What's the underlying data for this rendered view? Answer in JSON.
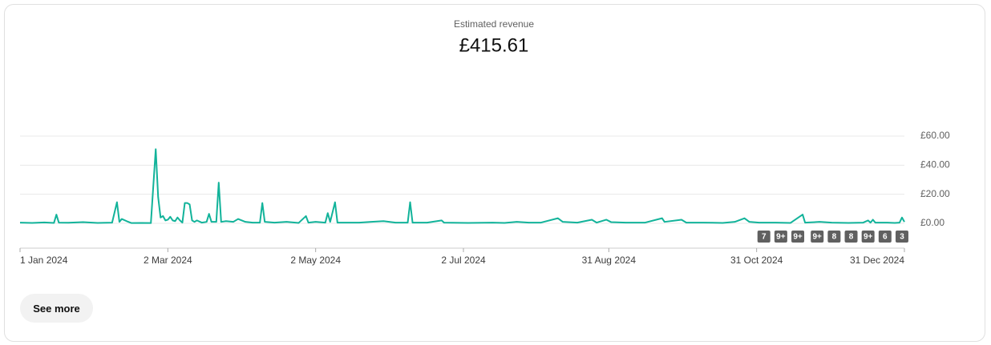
{
  "header": {
    "title": "Estimated revenue",
    "total": "£415.61"
  },
  "chart_data": {
    "type": "line",
    "x": [
      0,
      5,
      10,
      14,
      15,
      16,
      20,
      26,
      32,
      38,
      40,
      41,
      42,
      44,
      46,
      50,
      54,
      56,
      57,
      58,
      59,
      60,
      61,
      62,
      63,
      64,
      65,
      66,
      67,
      68,
      69,
      70,
      71,
      72,
      73,
      75,
      77,
      78,
      79,
      81,
      82,
      83,
      85,
      88,
      90,
      93,
      96,
      99,
      100,
      101,
      105,
      110,
      115,
      118,
      119,
      122,
      126,
      127,
      128,
      130,
      131,
      135,
      140,
      145,
      150,
      155,
      160,
      161,
      162,
      168,
      174,
      175,
      185,
      195,
      200,
      205,
      210,
      215,
      222,
      224,
      230,
      236,
      238,
      242,
      244,
      250,
      258,
      265,
      266,
      273,
      275,
      282,
      290,
      295,
      299,
      301,
      305,
      312,
      318,
      323,
      324,
      330,
      335,
      342,
      348,
      350,
      351,
      352,
      353,
      358,
      361,
      363,
      364,
      365
    ],
    "series": [
      {
        "name": "Estimated revenue",
        "color": "#12b39a",
        "values": [
          0.5,
          0.3,
          0.6,
          0.3,
          6,
          0.5,
          0.4,
          0.8,
          0.3,
          0.5,
          14.5,
          1,
          3,
          1.5,
          0.2,
          0.3,
          0.2,
          51,
          18,
          4,
          5,
          2,
          2.5,
          4.5,
          2,
          1.5,
          4,
          2,
          0.5,
          14,
          14,
          13,
          2,
          1,
          2,
          0.5,
          1,
          6.5,
          1,
          1,
          28,
          1,
          1.5,
          1,
          3,
          1,
          0.5,
          0.5,
          14,
          1,
          0.5,
          1,
          0.3,
          5,
          0.5,
          1,
          0.5,
          7,
          1,
          14.5,
          0.5,
          0.5,
          0.5,
          1,
          1.5,
          0.5,
          0.5,
          14.5,
          0.5,
          0.5,
          2,
          0.5,
          0.3,
          0.5,
          0.3,
          1,
          0.5,
          0.5,
          3.5,
          1,
          0.5,
          2.5,
          0.5,
          2.5,
          0.8,
          0.5,
          0.5,
          3.5,
          1,
          2.5,
          0.5,
          0.5,
          0.3,
          1,
          3.5,
          1,
          0.5,
          0.5,
          0.3,
          6,
          0.5,
          1,
          0.5,
          0.3,
          0.5,
          2,
          0.5,
          2.5,
          0.5,
          0.5,
          0.3,
          0.5,
          4,
          1
        ]
      }
    ],
    "xlim": [
      0,
      365
    ],
    "xticks": [
      {
        "value": 0,
        "label": "1 Jan 2024"
      },
      {
        "value": 61,
        "label": "2 Mar 2024"
      },
      {
        "value": 122,
        "label": "2 May 2024"
      },
      {
        "value": 183,
        "label": "2 Jul 2024"
      },
      {
        "value": 243,
        "label": "31 Aug 2024"
      },
      {
        "value": 304,
        "label": "31 Oct 2024"
      },
      {
        "value": 365,
        "label": "31 Dec 2024"
      }
    ],
    "ylim": [
      0,
      60
    ],
    "yticks": [
      {
        "value": 0,
        "label": "£0.00"
      },
      {
        "value": 20,
        "label": "£20.00"
      },
      {
        "value": 40,
        "label": "£40.00"
      },
      {
        "value": 60,
        "label": "£60.00"
      }
    ],
    "grid": true,
    "annotations": [
      {
        "x": 307,
        "label": "7"
      },
      {
        "x": 314,
        "label": "9+"
      },
      {
        "x": 321,
        "label": "9+"
      },
      {
        "x": 329,
        "label": "9+"
      },
      {
        "x": 336,
        "label": "8"
      },
      {
        "x": 343,
        "label": "8"
      },
      {
        "x": 350,
        "label": "9+"
      },
      {
        "x": 357,
        "label": "6"
      },
      {
        "x": 364,
        "label": "3"
      }
    ]
  },
  "button": {
    "label": "See more"
  }
}
